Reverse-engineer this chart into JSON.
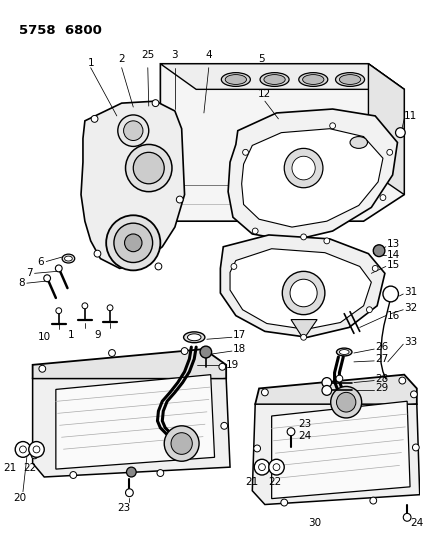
{
  "title": "5758  6800",
  "bg_color": "#ffffff",
  "lc": "#000000",
  "figsize": [
    4.28,
    5.33
  ],
  "dpi": 100,
  "lw_main": 1.0,
  "lw_thin": 0.6,
  "lw_thick": 1.4
}
